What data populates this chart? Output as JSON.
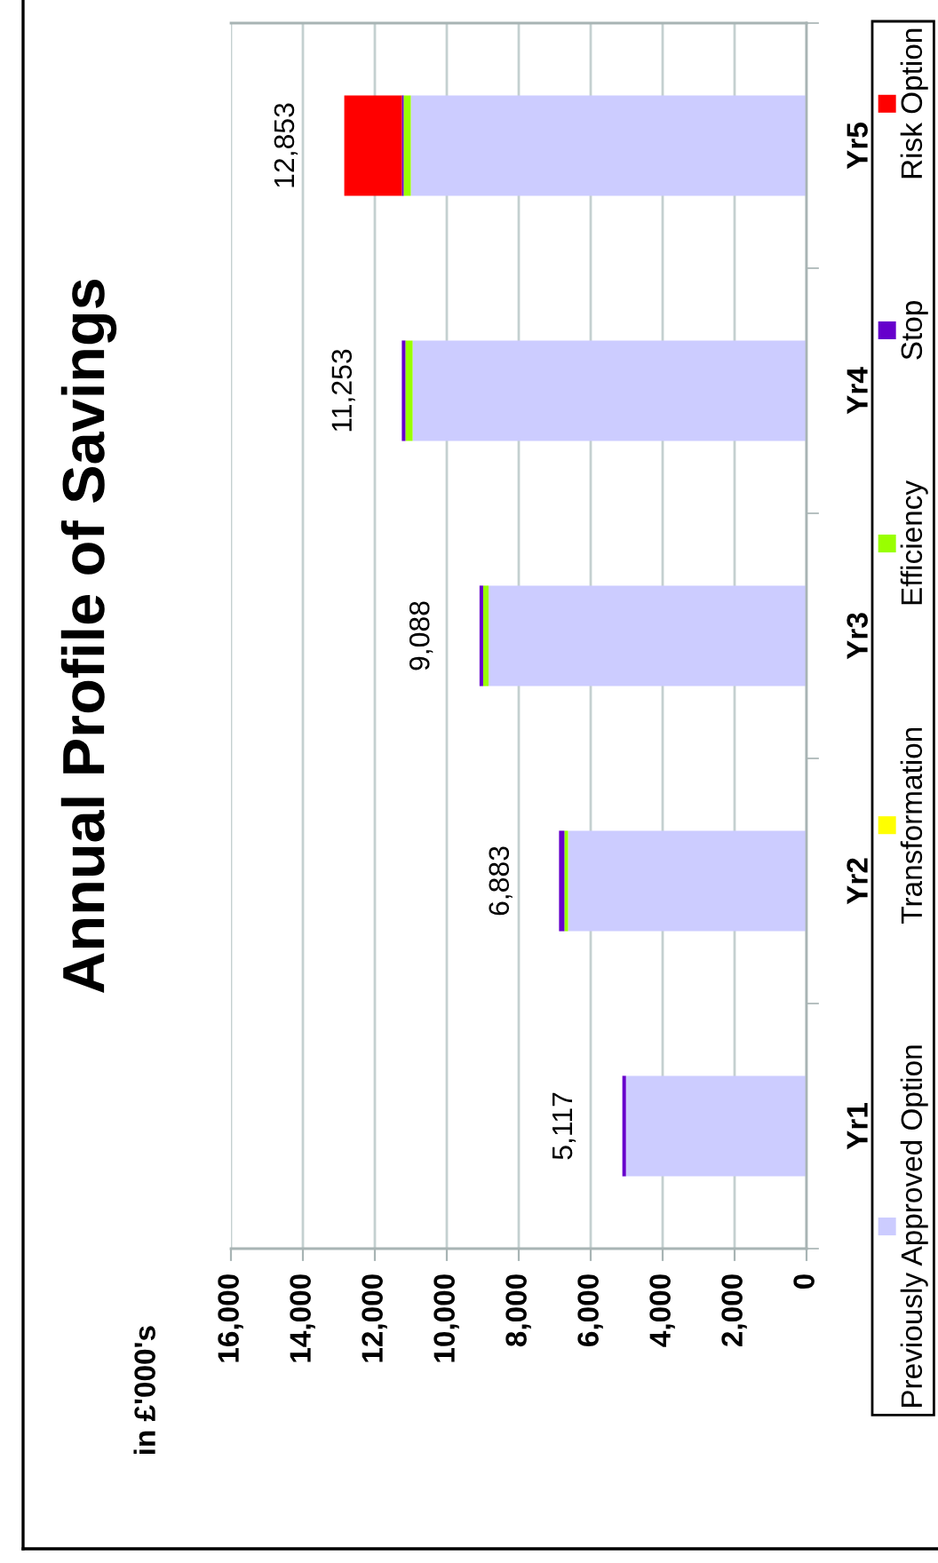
{
  "chart_data": {
    "type": "bar",
    "orientation": "horizontal",
    "stacked": true,
    "title": "Annual Profile of Savings",
    "annotations": [
      "in £'000's"
    ],
    "categories": [
      "Yr5",
      "Yr4",
      "Yr3",
      "Yr2",
      "Yr1"
    ],
    "series": [
      {
        "name": "Previously Approved Option",
        "color": "#ccccff",
        "values": [
          11000,
          10950,
          8840,
          6630,
          5020
        ]
      },
      {
        "name": "Transformation",
        "color": "#ffff00",
        "values": [
          0,
          0,
          0,
          0,
          0
        ]
      },
      {
        "name": "Efficiency",
        "color": "#99ff00",
        "values": [
          200,
          200,
          150,
          100,
          0
        ]
      },
      {
        "name": "Stop",
        "color": "#6600cc",
        "values": [
          50,
          100,
          100,
          150,
          100
        ]
      },
      {
        "name": "Risk Option",
        "color": "#ff0000",
        "values": [
          1600,
          0,
          0,
          0,
          0
        ]
      }
    ],
    "totals": [
      "12,853",
      "11,253",
      "9,088",
      "6,883",
      "5,117"
    ],
    "xlim": [
      16000,
      0
    ],
    "xticks": [
      {
        "value": 0,
        "label": "0"
      },
      {
        "value": 2000,
        "label": "2,000"
      },
      {
        "value": 4000,
        "label": "4,000"
      },
      {
        "value": 6000,
        "label": "6,000"
      },
      {
        "value": 8000,
        "label": "8,000"
      },
      {
        "value": 10000,
        "label": "10,000"
      },
      {
        "value": 12000,
        "label": "12,000"
      },
      {
        "value": 14000,
        "label": "14,000"
      },
      {
        "value": 16000,
        "label": "16,000"
      }
    ],
    "grid": "x",
    "legend": "right"
  }
}
